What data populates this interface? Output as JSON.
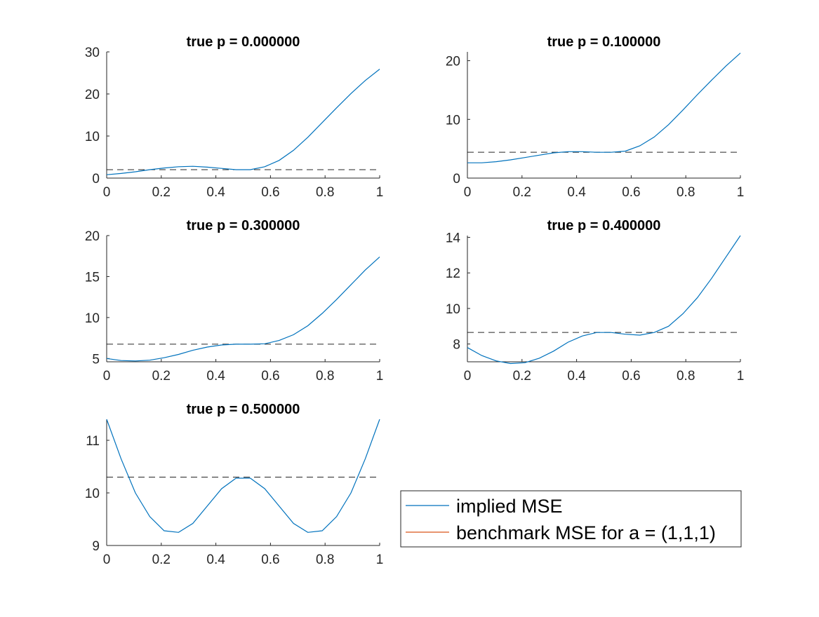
{
  "chart_data": {
    "type": "line",
    "legend": {
      "placement": "bottom-right",
      "entries": [
        {
          "label": "implied MSE",
          "color": "#0072BD"
        },
        {
          "label": "benchmark MSE for a = (1,1,1)",
          "color": "#D95319"
        }
      ]
    },
    "x": [
      0,
      0.05263,
      0.10526,
      0.15789,
      0.21053,
      0.26316,
      0.31579,
      0.36842,
      0.42105,
      0.47368,
      0.52632,
      0.57895,
      0.63158,
      0.68421,
      0.73684,
      0.78947,
      0.84211,
      0.89474,
      0.94737,
      1
    ],
    "panels": [
      {
        "title": "true p = 0.000000",
        "xlim": [
          0,
          1
        ],
        "ylim": [
          0,
          30
        ],
        "xticks": [
          "0",
          "0.2",
          "0.4",
          "0.6",
          "0.8",
          "1"
        ],
        "yticks": [
          "0",
          "10",
          "20",
          "30"
        ],
        "ytick_values": [
          0,
          10,
          20,
          30
        ],
        "implied": [
          0.8,
          1.1,
          1.5,
          2.0,
          2.4,
          2.7,
          2.8,
          2.6,
          2.3,
          2.0,
          2.0,
          2.7,
          4.2,
          6.6,
          9.7,
          13.2,
          16.7,
          20.1,
          23.2,
          25.9
        ],
        "benchmark": 2.0
      },
      {
        "title": "true p = 0.100000",
        "xlim": [
          0,
          1
        ],
        "ylim": [
          0,
          21.5
        ],
        "xticks": [
          "0",
          "0.2",
          "0.4",
          "0.6",
          "0.8",
          "1"
        ],
        "yticks": [
          "0",
          "10",
          "20"
        ],
        "ytick_values": [
          0,
          10,
          20
        ],
        "implied": [
          2.6,
          2.6,
          2.8,
          3.1,
          3.5,
          3.9,
          4.3,
          4.5,
          4.5,
          4.4,
          4.4,
          4.6,
          5.5,
          7.0,
          9.1,
          11.6,
          14.2,
          16.7,
          19.1,
          21.3
        ],
        "benchmark": 4.4
      },
      {
        "title": "true p = 0.300000",
        "xlim": [
          0,
          1
        ],
        "ylim": [
          4.6,
          20
        ],
        "xticks": [
          "0",
          "0.2",
          "0.4",
          "0.6",
          "0.8",
          "1"
        ],
        "yticks": [
          "5",
          "10",
          "15",
          "20"
        ],
        "ytick_values": [
          5,
          10,
          15,
          20
        ],
        "implied": [
          5.0,
          4.75,
          4.7,
          4.8,
          5.1,
          5.5,
          6.0,
          6.4,
          6.65,
          6.75,
          6.75,
          6.8,
          7.2,
          7.9,
          9.0,
          10.5,
          12.2,
          14.0,
          15.8,
          17.4
        ],
        "benchmark": 6.75
      },
      {
        "title": "true p = 0.400000",
        "xlim": [
          0,
          1
        ],
        "ylim": [
          7,
          14.1
        ],
        "xticks": [
          "0",
          "0.2",
          "0.4",
          "0.6",
          "0.8",
          "1"
        ],
        "yticks": [
          "8",
          "10",
          "12",
          "14"
        ],
        "ytick_values": [
          8,
          10,
          12,
          14
        ],
        "implied": [
          7.8,
          7.35,
          7.05,
          6.9,
          6.95,
          7.2,
          7.6,
          8.1,
          8.45,
          8.65,
          8.65,
          8.55,
          8.5,
          8.65,
          9.0,
          9.7,
          10.6,
          11.7,
          12.9,
          14.1
        ],
        "benchmark": 8.65
      },
      {
        "title": "true p = 0.500000",
        "xlim": [
          0,
          1
        ],
        "ylim": [
          9,
          11.4
        ],
        "xticks": [
          "0",
          "0.2",
          "0.4",
          "0.6",
          "0.8",
          "1"
        ],
        "yticks": [
          "9",
          "10",
          "11"
        ],
        "ytick_values": [
          9,
          10,
          11
        ],
        "implied": [
          11.4,
          10.65,
          10.0,
          9.55,
          9.28,
          9.25,
          9.42,
          9.75,
          10.08,
          10.28,
          10.28,
          10.08,
          9.75,
          9.42,
          9.25,
          9.28,
          9.55,
          10.0,
          10.65,
          11.4
        ],
        "benchmark": 10.3
      }
    ]
  }
}
